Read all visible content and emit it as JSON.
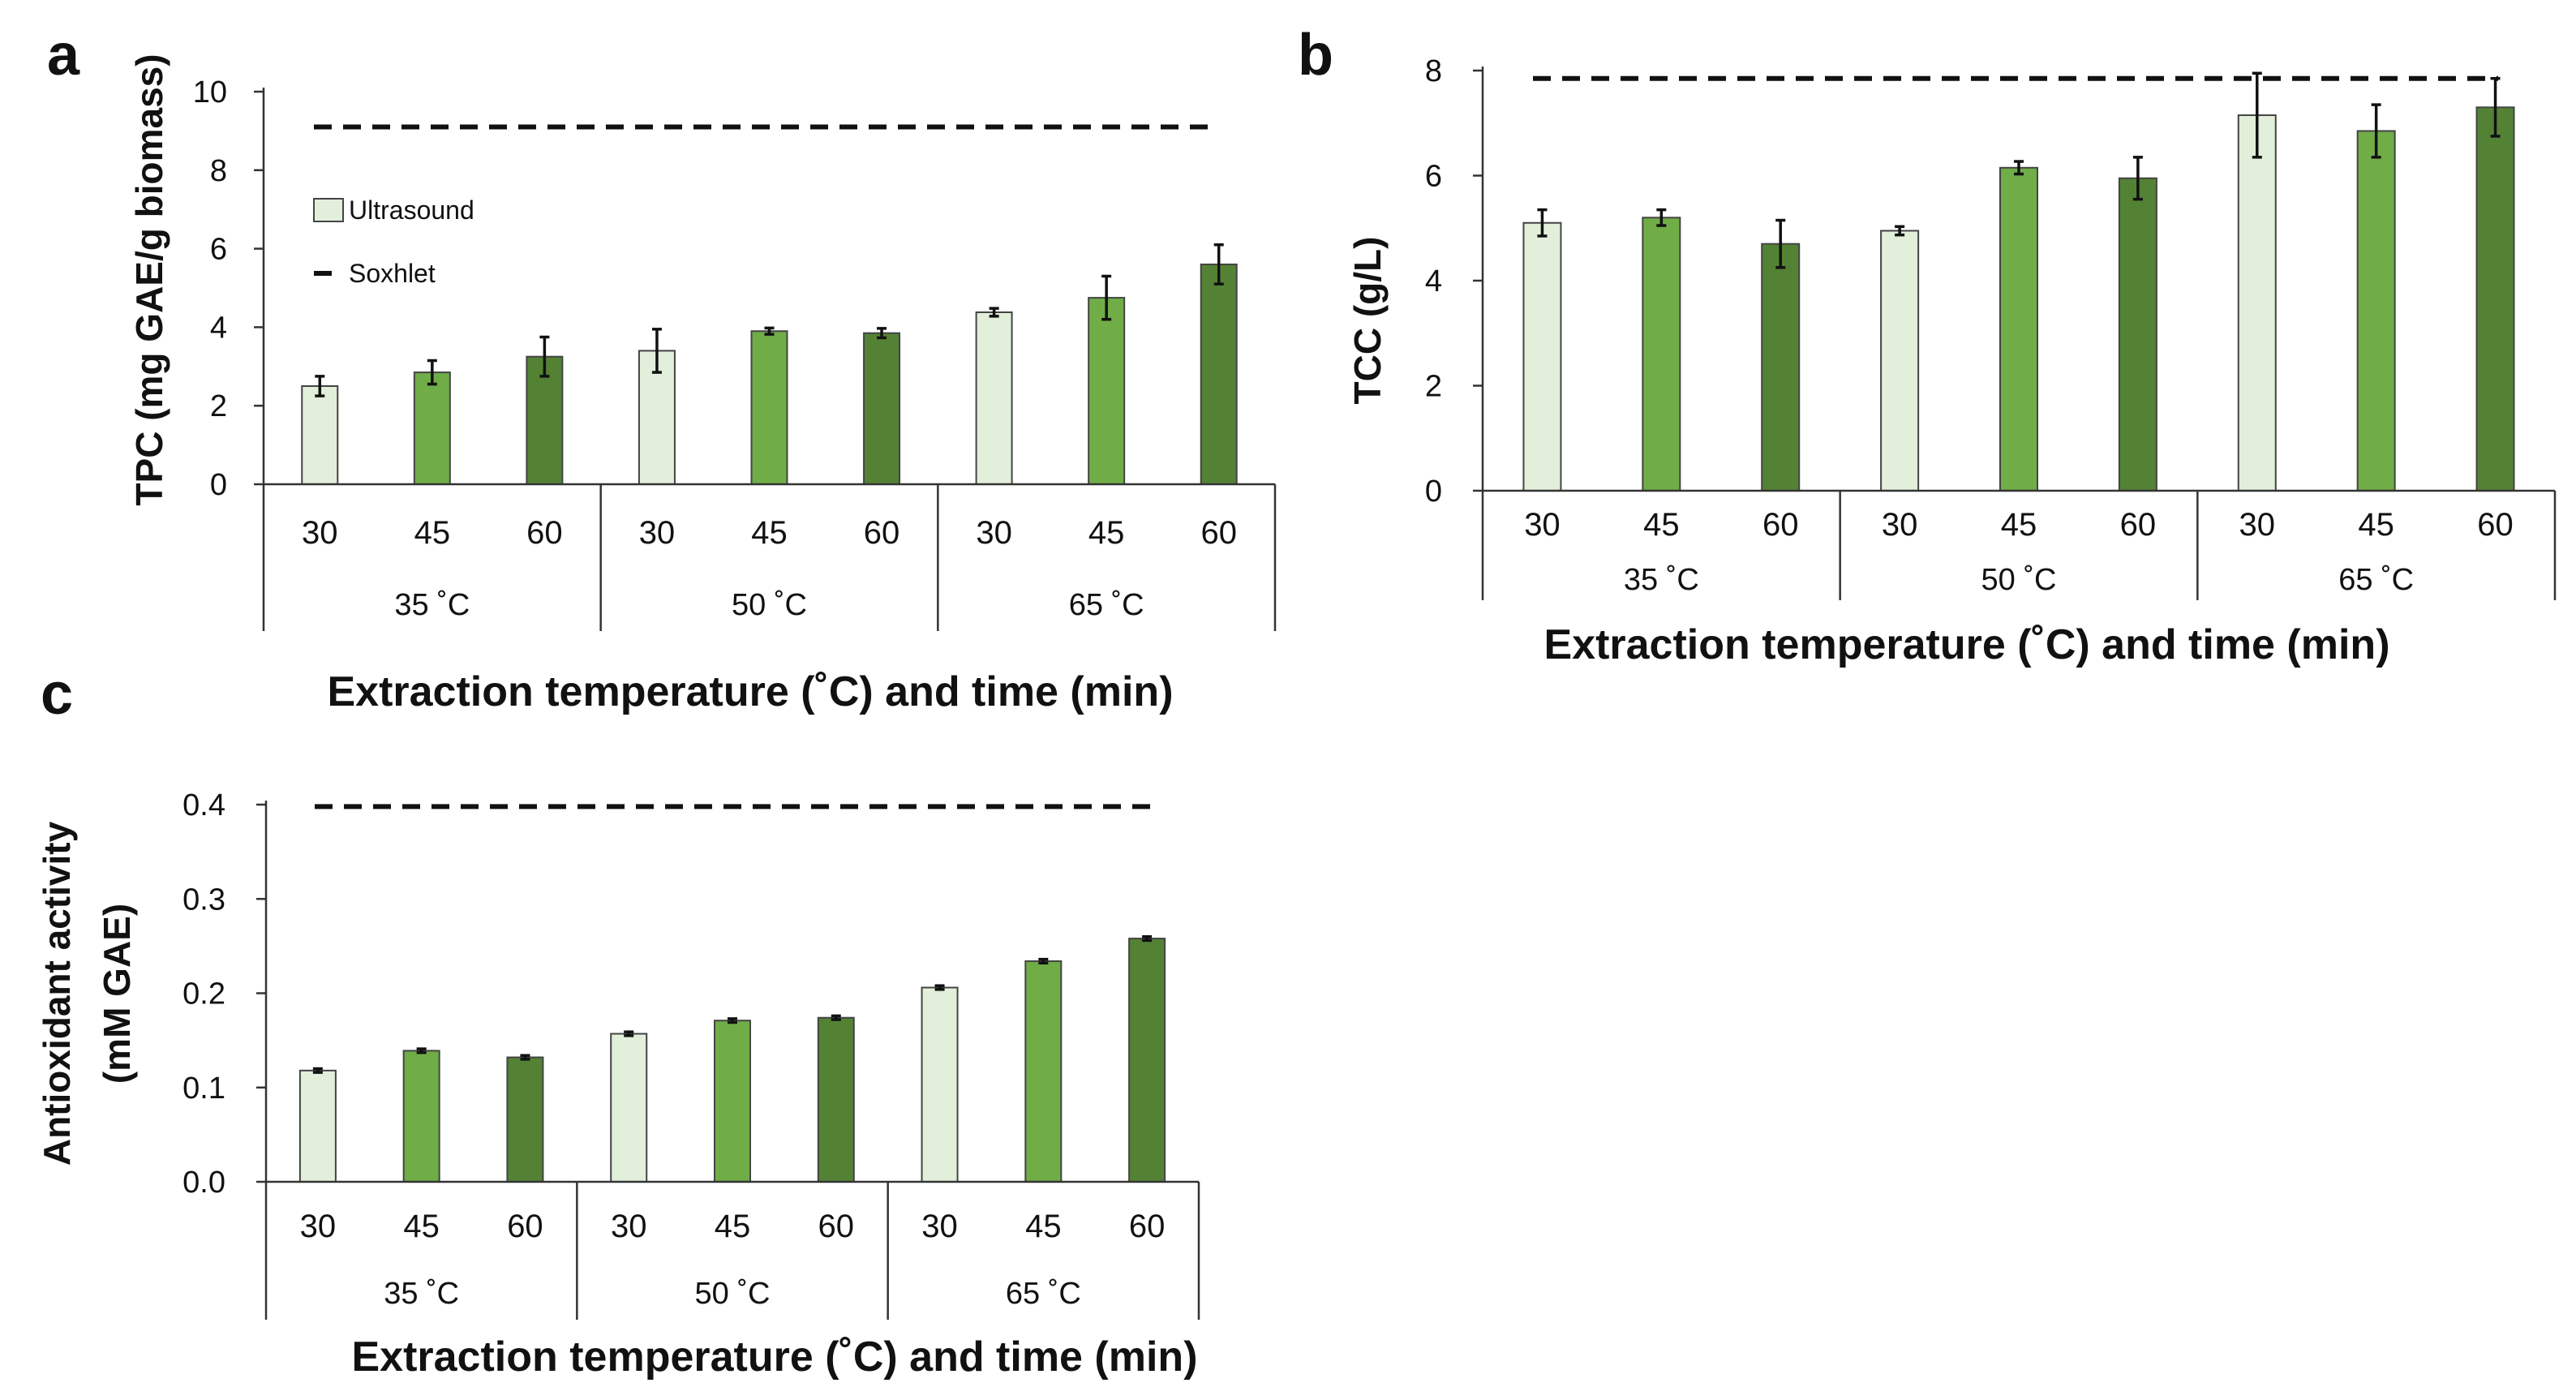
{
  "colors": {
    "t30": "#e2efda",
    "t45": "#70ad47",
    "t60": "#548235",
    "soxhlet": "#111111"
  },
  "chart_data": [
    {
      "panel": "a",
      "type": "bar",
      "categories": [
        "30",
        "45",
        "60",
        "30",
        "45",
        "60",
        "30",
        "45",
        "60"
      ],
      "groups": [
        "35 ˚C",
        "50 ˚C",
        "65 ˚C"
      ],
      "values": [
        2.5,
        2.85,
        3.25,
        3.4,
        3.9,
        3.85,
        4.38,
        4.75,
        5.6
      ],
      "errors": [
        0.25,
        0.3,
        0.5,
        0.55,
        0.08,
        0.12,
        0.1,
        0.55,
        0.5
      ],
      "soxhlet": 9.1,
      "ylim": [
        0,
        10
      ],
      "yticks": [
        "0",
        "2",
        "4",
        "6",
        "8",
        "10"
      ],
      "ylabel": "TPC (mg GAE/g biomass)",
      "xlabel": "Extraction temperature (˚C) and time (min)",
      "legend": {
        "ultrasound": "Ultrasound",
        "soxhlet": "Soxhlet"
      }
    },
    {
      "panel": "b",
      "type": "bar",
      "categories": [
        "30",
        "45",
        "60",
        "30",
        "45",
        "60",
        "30",
        "45",
        "60"
      ],
      "groups": [
        "35 ˚C",
        "50 ˚C",
        "65 ˚C"
      ],
      "values": [
        5.1,
        5.2,
        4.7,
        4.95,
        6.15,
        5.95,
        7.15,
        6.85,
        7.3
      ],
      "errors": [
        0.25,
        0.15,
        0.45,
        0.08,
        0.12,
        0.4,
        0.8,
        0.5,
        0.55
      ],
      "soxhlet": 7.85,
      "ylim": [
        0,
        8
      ],
      "yticks": [
        "0",
        "2",
        "4",
        "6",
        "8"
      ],
      "ylabel": "TCC (g/L)",
      "xlabel": "Extraction temperature (˚C) and time (min)"
    },
    {
      "panel": "c",
      "type": "bar",
      "categories": [
        "30",
        "45",
        "60",
        "30",
        "45",
        "60",
        "30",
        "45",
        "60"
      ],
      "groups": [
        "35 ˚C",
        "50 ˚C",
        "65 ˚C"
      ],
      "values": [
        0.118,
        0.139,
        0.132,
        0.157,
        0.171,
        0.174,
        0.206,
        0.234,
        0.258
      ],
      "errors": [
        0.002,
        0.002,
        0.002,
        0.002,
        0.002,
        0.002,
        0.002,
        0.002,
        0.002
      ],
      "soxhlet": 0.398,
      "ylim": [
        0,
        0.4
      ],
      "yticks": [
        "0.0",
        "0.1",
        "0.2",
        "0.3",
        "0.4"
      ],
      "ylabel_line1": "Antioxidant activity",
      "ylabel_line2": "(mM GAE)",
      "xlabel": "Extraction temperature (˚C) and time (min)"
    }
  ]
}
